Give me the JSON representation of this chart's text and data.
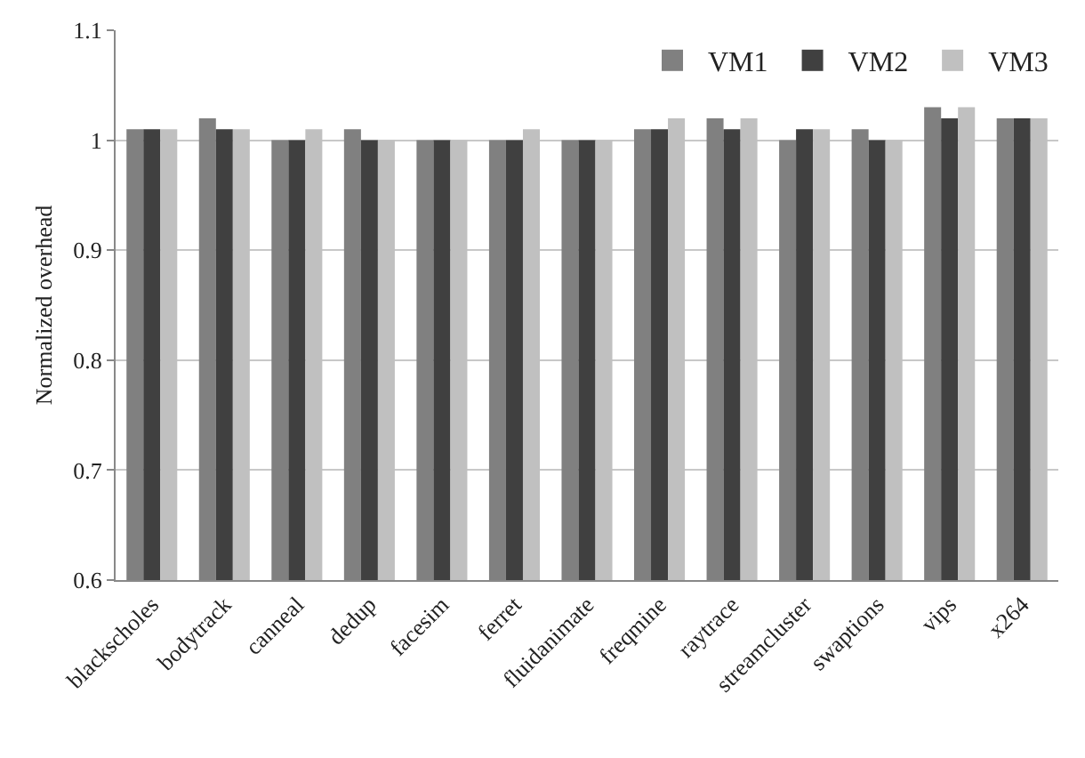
{
  "chart_data": {
    "type": "bar",
    "ylabel": "Normalized overhead",
    "categories": [
      "blackscholes",
      "bodytrack",
      "canneal",
      "dedup",
      "facesim",
      "ferret",
      "fluidanimate",
      "freqmine",
      "raytrace",
      "streamcluster",
      "swaptions",
      "vips",
      "x264"
    ],
    "series": [
      {
        "name": "VM1",
        "color": "#808080",
        "values": [
          1.01,
          1.02,
          1.0,
          1.01,
          1.0,
          1.0,
          1.0,
          1.01,
          1.02,
          1.0,
          1.01,
          1.03,
          1.02
        ]
      },
      {
        "name": "VM2",
        "color": "#404040",
        "values": [
          1.01,
          1.01,
          1.0,
          1.0,
          1.0,
          1.0,
          1.0,
          1.01,
          1.01,
          1.01,
          1.0,
          1.02,
          1.02
        ]
      },
      {
        "name": "VM3",
        "color": "#c0c0c0",
        "values": [
          1.01,
          1.01,
          1.01,
          1.0,
          1.0,
          1.01,
          1.0,
          1.02,
          1.02,
          1.01,
          1.0,
          1.03,
          1.02
        ]
      }
    ],
    "ylim": [
      0.6,
      1.1
    ],
    "yticks": [
      0.6,
      0.7,
      0.8,
      0.9,
      1,
      1.1
    ],
    "grid": "y",
    "legend": "top right"
  }
}
